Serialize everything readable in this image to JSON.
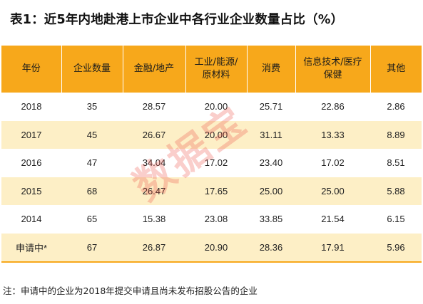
{
  "title": "表1：近5年内地赴港上市企业中各行业企业数量占比（%）",
  "colors": {
    "header_bg": "#f7a81b",
    "stripe_bg": "#fdefc6",
    "watermark": "#ec5046"
  },
  "table": {
    "headers": [
      [
        "年份"
      ],
      [
        "企业数量"
      ],
      [
        "金融/地产"
      ],
      [
        "工业/能源/",
        "原材料"
      ],
      [
        "消费"
      ],
      [
        "信息技术/医疗",
        "保健"
      ],
      [
        "其他"
      ]
    ],
    "rows": [
      [
        "2018",
        "35",
        "28.57",
        "20.00",
        "25.71",
        "22.86",
        "2.86"
      ],
      [
        "2017",
        "45",
        "26.67",
        "20.00",
        "31.11",
        "13.33",
        "8.89"
      ],
      [
        "2016",
        "47",
        "34.04",
        "17.02",
        "23.40",
        "17.02",
        "8.51"
      ],
      [
        "2015",
        "68",
        "26.47",
        "17.65",
        "25.00",
        "25.00",
        "5.88"
      ],
      [
        "2014",
        "65",
        "15.38",
        "23.08",
        "33.85",
        "21.54",
        "6.15"
      ],
      [
        "申请中*",
        "67",
        "26.87",
        "20.90",
        "28.36",
        "17.91",
        "5.96"
      ]
    ]
  },
  "watermark": "数据宝",
  "note": "注：申请中的企业为2018年提交申请且尚未发布招股公告的企业"
}
